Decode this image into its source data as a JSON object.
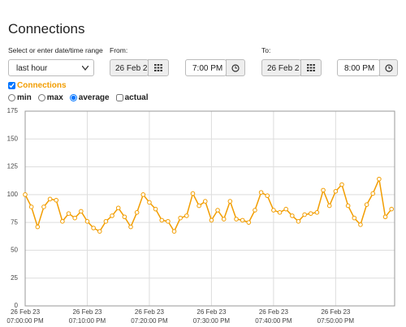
{
  "header": {
    "title": "Connections"
  },
  "controls": {
    "range_label": "Select or enter date/time range",
    "range_select": "last hour",
    "from_label": "From:",
    "from_date": "26 Feb 2",
    "from_time": "7:00 PM",
    "to_label": "To:",
    "to_date": "26 Feb 2",
    "to_time": "8:00 PM"
  },
  "options": {
    "stats": [
      "min",
      "max",
      "average"
    ],
    "selected_stat": 2,
    "actual": "actual"
  },
  "chart_data": {
    "type": "line",
    "x": [
      0,
      1,
      2,
      3,
      4,
      5,
      6,
      7,
      8,
      9,
      10,
      11,
      12,
      13,
      14,
      15,
      16,
      17,
      18,
      19,
      20,
      21,
      22,
      23,
      24,
      25,
      26,
      27,
      28,
      29,
      30,
      31,
      32,
      33,
      34,
      35,
      36,
      37,
      38,
      39,
      40,
      41,
      42,
      43,
      44,
      45,
      46,
      47,
      48,
      49,
      50,
      51,
      52,
      53,
      54,
      55,
      56,
      57,
      58,
      59
    ],
    "series": [
      {
        "name": "Connections",
        "color": "#f29d00",
        "values": [
          100,
          89,
          71,
          89,
          96,
          95,
          76,
          83,
          79,
          85,
          76,
          70,
          67,
          76,
          81,
          88,
          80,
          71,
          84,
          100,
          93,
          87,
          77,
          76,
          67,
          79,
          81,
          101,
          90,
          94,
          77,
          86,
          78,
          94,
          78,
          77,
          75,
          86,
          102,
          99,
          86,
          84,
          87,
          81,
          76,
          82,
          83,
          84,
          104,
          90,
          103,
          109,
          90,
          79,
          73,
          91,
          101,
          114,
          80,
          87
        ]
      }
    ],
    "xlim": [
      0,
      59.5
    ],
    "ylim": [
      0,
      175
    ],
    "yticks": [
      0,
      25,
      50,
      75,
      100,
      125,
      150,
      175
    ],
    "xticks": [
      {
        "value": 0,
        "label": "26 Feb 23 07:00:00 PM"
      },
      {
        "value": 10,
        "label": "26 Feb 23 07:10:00 PM"
      },
      {
        "value": 20,
        "label": "26 Feb 23 07:20:00 PM"
      },
      {
        "value": 30,
        "label": "26 Feb 23 07:30:00 PM"
      },
      {
        "value": 40,
        "label": "26 Feb 23 07:40:00 PM"
      },
      {
        "value": 50,
        "label": "26 Feb 23 07:50:00 PM"
      }
    ],
    "grid": true
  }
}
